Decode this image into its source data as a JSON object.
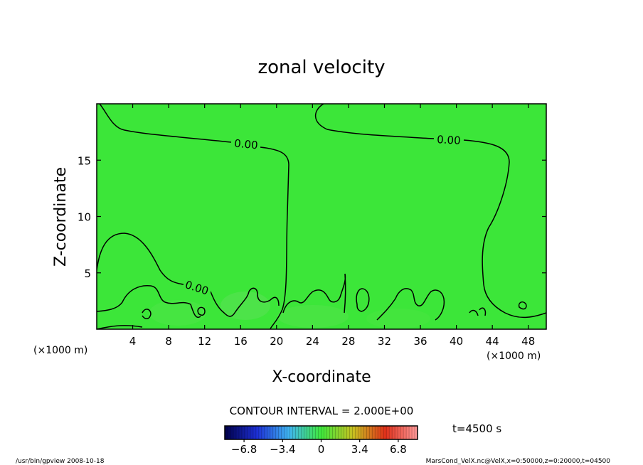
{
  "chart_data": {
    "type": "heatmap",
    "title": "zonal velocity",
    "xlabel": "X-coordinate",
    "ylabel": "Z-coordinate",
    "x_unit_left": "(×1000 m)",
    "x_unit_right": "(×1000 m)",
    "xlim": [
      0,
      50
    ],
    "ylim": [
      0,
      20
    ],
    "x_ticks": [
      4,
      8,
      12,
      16,
      20,
      24,
      28,
      32,
      36,
      40,
      44,
      48
    ],
    "y_ticks": [
      5,
      10,
      15
    ],
    "field_color": "#3ce639",
    "contour_level_label": "0.00",
    "contour_interval": "CONTOUR INTERVAL = 2.000E+00",
    "time_label": "t=4500 s",
    "colorbar_ticks": [
      "−6.8",
      "−3.4",
      "0",
      "3.4",
      "6.8"
    ],
    "colorbar_range": [
      -8.5,
      8.5
    ],
    "colorbar_values": [
      -6.8,
      -3.4,
      0,
      3.4,
      6.8
    ],
    "colorbar_colors": [
      "#00004a",
      "#1d2fd6",
      "#3fb4f0",
      "#3fe83c",
      "#c8c020",
      "#e0301a",
      "#ff9a9a"
    ],
    "footer_left": "/usr/bin/gpview   2008-10-18",
    "footer_right": "MarsCond_VelX.nc@VelX,x=0:50000,z=0:20000,t=04500"
  }
}
